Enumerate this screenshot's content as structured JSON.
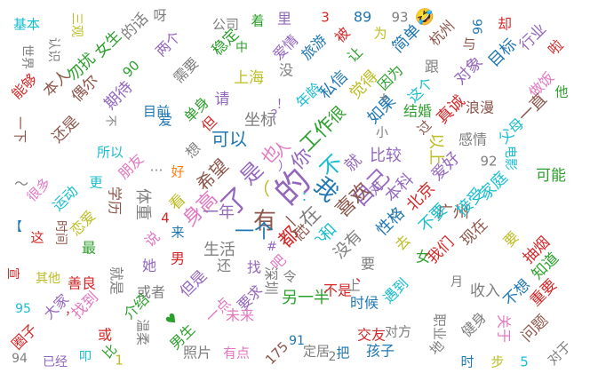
{
  "chart_data": {
    "type": "wordcloud",
    "palette": [
      "#1f77b4",
      "#ff7f0e",
      "#2ca02c",
      "#d62728",
      "#9467bd",
      "#8c564b",
      "#e377c2",
      "#7f7f7f",
      "#bcbd22",
      "#17becf"
    ],
    "words": [
      {
        "text": "的",
        "color": "#9467bd"
      },
      {
        "text": "我",
        "color": "#1f77b4"
      },
      {
        "text": "有",
        "color": "#8c564b"
      },
      {
        "text": "了",
        "color": "#9467bd"
      },
      {
        "text": "是",
        "color": "#9467bd"
      },
      {
        "text": "不",
        "color": "#17becf"
      },
      {
        "text": "你",
        "color": "#9467bd"
      },
      {
        "text": "在",
        "color": "#7f7f7f"
      },
      {
        "text": "自己",
        "color": "#9467bd"
      },
      {
        "text": "一个",
        "color": "#1f77b4"
      },
      {
        "text": "都",
        "color": "#d62728"
      },
      {
        "text": "希望",
        "color": "#8c564b"
      },
      {
        "text": "身高",
        "color": "#e377c2"
      },
      {
        "text": "工作",
        "color": "#2ca02c"
      },
      {
        "text": "喜欢",
        "color": "#8c564b"
      },
      {
        "text": "也",
        "color": "#e377c2"
      },
      {
        "text": "人",
        "color": "#e377c2"
      },
      {
        "text": "和",
        "color": "#17becf"
      },
      {
        "text": "可以",
        "color": "#1f77b4"
      },
      {
        "text": "一年",
        "color": "#9467bd"
      },
      {
        "text": "就",
        "color": "#9467bd"
      },
      {
        "text": "比较",
        "color": "#9467bd"
      },
      {
        "text": "很",
        "color": "#2ca02c"
      },
      {
        "text": "坐标",
        "color": "#7f7f7f"
      },
      {
        "text": "生活",
        "color": "#7f7f7f"
      },
      {
        "text": "一起",
        "color": "#8c564b"
      },
      {
        "text": "没有",
        "color": "#7f7f7f"
      },
      {
        "text": "性格",
        "color": "#1f77b4"
      },
      {
        "text": "要",
        "color": "#7f7f7f"
      },
      {
        "text": "本科",
        "color": "#9467bd"
      },
      {
        "text": "北京",
        "color": "#d62728"
      },
      {
        "text": "广州",
        "color": "#8c564b"
      },
      {
        "text": "不要",
        "color": "#17becf"
      },
      {
        "text": "接受",
        "color": "#17becf"
      },
      {
        "text": "家庭",
        "color": "#17becf"
      },
      {
        "text": "可能",
        "color": "#2ca02c"
      },
      {
        "text": "感情",
        "color": "#7f7f7f"
      },
      {
        "text": "爱好",
        "color": "#9467bd"
      },
      {
        "text": "结婚",
        "color": "#2ca02c"
      },
      {
        "text": "如果",
        "color": "#1f77b4"
      },
      {
        "text": "私信",
        "color": "#1f77b4"
      },
      {
        "text": "觉得",
        "color": "#bcbd22"
      },
      {
        "text": "上海",
        "color": "#bcbd22"
      },
      {
        "text": "没",
        "color": "#7f7f7f"
      },
      {
        "text": "旅游",
        "color": "#1f77b4"
      },
      {
        "text": "爱情",
        "color": "#9467bd"
      },
      {
        "text": "稳定",
        "color": "#2ca02c"
      },
      {
        "text": "公司",
        "color": "#7f7f7f"
      },
      {
        "text": "着",
        "color": "#2ca02c"
      },
      {
        "text": "里",
        "color": "#9467bd"
      },
      {
        "text": "3",
        "color": "#d62728"
      },
      {
        "text": "89",
        "color": "#1f77b4"
      },
      {
        "text": "93",
        "color": "#7f7f7f"
      },
      {
        "text": "🤣",
        "color": "#ff7f0e"
      },
      {
        "text": "杭州",
        "color": "#8c564b"
      },
      {
        "text": "96",
        "color": "#1f77b4"
      },
      {
        "text": "却",
        "color": "#d62728"
      },
      {
        "text": "行业",
        "color": "#9467bd"
      },
      {
        "text": "啦",
        "color": "#d62728"
      },
      {
        "text": "基本",
        "color": "#17becf"
      },
      {
        "text": "三观",
        "color": "#bcbd22"
      },
      {
        "text": "世界",
        "color": "#7f7f7f"
      },
      {
        "text": "认识",
        "color": "#7f7f7f"
      },
      {
        "text": "勿扰",
        "color": "#2ca02c"
      },
      {
        "text": "女生",
        "color": "#2ca02c"
      },
      {
        "text": "的话",
        "color": "#7f7f7f"
      },
      {
        "text": "呀",
        "color": "#7f7f7f"
      },
      {
        "text": "两个",
        "color": "#9467bd"
      },
      {
        "text": "中",
        "color": "#2ca02c"
      },
      {
        "text": "被",
        "color": "#d62728"
      },
      {
        "text": "为",
        "color": "#bcbd22"
      },
      {
        "text": "简单",
        "color": "#1f77b4"
      },
      {
        "text": "跟",
        "color": "#7f7f7f"
      },
      {
        "text": "与",
        "color": "#8c564b"
      },
      {
        "text": "目标",
        "color": "#1f77b4"
      },
      {
        "text": "对象",
        "color": "#9467bd"
      },
      {
        "text": "做饭",
        "color": "#e377c2"
      },
      {
        "text": "他",
        "color": "#2ca02c"
      },
      {
        "text": "能够",
        "color": "#d62728"
      },
      {
        "text": "本人",
        "color": "#8c564b"
      },
      {
        "text": "偶尔",
        "color": "#8c564b"
      },
      {
        "text": "90",
        "color": "#2ca02c"
      },
      {
        "text": "期待",
        "color": "#9467bd"
      },
      {
        "text": "需要",
        "color": "#7f7f7f"
      },
      {
        "text": "请",
        "color": "#9467bd"
      },
      {
        "text": "年龄",
        "color": "#17becf"
      },
      {
        "text": "让",
        "color": "#2ca02c"
      },
      {
        "text": "因为",
        "color": "#2ca02c"
      },
      {
        "text": "这个",
        "color": "#17becf"
      },
      {
        "text": "真诚",
        "color": "#d62728"
      },
      {
        "text": "一直",
        "color": "#8c564b"
      },
      {
        "text": "父母",
        "color": "#17becf"
      },
      {
        "text": "一下",
        "color": "#8c564b"
      },
      {
        "text": "还是",
        "color": "#8c564b"
      },
      {
        "text": "不",
        "color": "#7f7f7f"
      },
      {
        "text": "目前",
        "color": "#1f77b4"
      },
      {
        "text": "单身",
        "color": "#2ca02c"
      },
      {
        "text": "但",
        "color": "#d62728"
      },
      {
        "text": "小",
        "color": "#7f7f7f"
      },
      {
        "text": "过",
        "color": "#8c564b"
      },
      {
        "text": "以上",
        "color": "#bcbd22"
      },
      {
        "text": "92",
        "color": "#7f7f7f"
      },
      {
        "text": "电影",
        "color": "#17becf"
      },
      {
        "text": "浪漫",
        "color": "#8c564b"
      },
      {
        "text": "所以",
        "color": "#17becf"
      },
      {
        "text": "朋友",
        "color": "#e377c2"
      },
      {
        "text": "好",
        "color": "#ff7f0e"
      },
      {
        "text": "爱",
        "color": "#1f77b4"
      },
      {
        "text": "想",
        "color": "#7f7f7f"
      },
      {
        "text": "对",
        "color": "#9467bd"
      },
      {
        "text": "更",
        "color": "#17becf"
      },
      {
        "text": "体重",
        "color": "#7f7f7f"
      },
      {
        "text": "看",
        "color": "#bcbd22"
      },
      {
        "text": "4",
        "color": "#d62728"
      },
      {
        "text": "很多",
        "color": "#e377c2"
      },
      {
        "text": "运动",
        "color": "#17becf"
      },
      {
        "text": "恋爱",
        "color": "#bcbd22"
      },
      {
        "text": "学历",
        "color": "#8c564b"
      },
      {
        "text": "说",
        "color": "#e377c2"
      },
      {
        "text": "来",
        "color": "#1f77b4"
      },
      {
        "text": "这",
        "color": "#d62728"
      },
      {
        "text": "时间",
        "color": "#8c564b"
      },
      {
        "text": "最",
        "color": "#2ca02c"
      },
      {
        "text": "她",
        "color": "#9467bd"
      },
      {
        "text": "男",
        "color": "#d62728"
      },
      {
        "text": "还",
        "color": "#7f7f7f"
      },
      {
        "text": "找",
        "color": "#9467bd"
      },
      {
        "text": "吧",
        "color": "#e377c2"
      },
      {
        "text": "令",
        "color": "#7f7f7f"
      },
      {
        "text": "女",
        "color": "#2ca02c"
      },
      {
        "text": "去",
        "color": "#bcbd22"
      },
      {
        "text": "我们",
        "color": "#d62728"
      },
      {
        "text": "现在",
        "color": "#8c564b"
      },
      {
        "text": "要",
        "color": "#bcbd22"
      },
      {
        "text": "抽烟",
        "color": "#d62728"
      },
      {
        "text": "知道",
        "color": "#2ca02c"
      },
      {
        "text": "宣",
        "color": "#d62728"
      },
      {
        "text": "其他",
        "color": "#bcbd22"
      },
      {
        "text": "善良",
        "color": "#d62728"
      },
      {
        "text": "就是",
        "color": "#7f7f7f"
      },
      {
        "text": "或者",
        "color": "#7f7f7f"
      },
      {
        "text": "但是",
        "color": "#9467bd"
      },
      {
        "text": "深圳",
        "color": "#7f7f7f"
      },
      {
        "text": "另一半",
        "color": "#2ca02c"
      },
      {
        "text": "不是",
        "color": "#d62728"
      },
      {
        "text": "上",
        "color": "#7f7f7f"
      },
      {
        "text": "时候",
        "color": "#1f77b4"
      },
      {
        "text": "遇到",
        "color": "#17becf"
      },
      {
        "text": "月",
        "color": "#7f7f7f"
      },
      {
        "text": "收入",
        "color": "#7f7f7f"
      },
      {
        "text": "不想",
        "color": "#1f77b4"
      },
      {
        "text": "重要",
        "color": "#d62728"
      },
      {
        "text": "95",
        "color": "#17becf"
      },
      {
        "text": "大家",
        "color": "#9467bd"
      },
      {
        "text": "找到",
        "color": "#e377c2"
      },
      {
        "text": "介绍",
        "color": "#2ca02c"
      },
      {
        "text": "要求",
        "color": "#9467bd"
      },
      {
        "text": "未来",
        "color": "#e377c2"
      },
      {
        "text": "一点",
        "color": "#e377c2"
      },
      {
        "text": "91",
        "color": "#1f77b4"
      },
      {
        "text": "交友",
        "color": "#d62728"
      },
      {
        "text": "对方",
        "color": "#7f7f7f"
      },
      {
        "text": "职业",
        "color": "#7f7f7f"
      },
      {
        "text": "健身",
        "color": "#7f7f7f"
      },
      {
        "text": "关于",
        "color": "#e377c2"
      },
      {
        "text": "问题",
        "color": "#8c564b"
      },
      {
        "text": "圈子",
        "color": "#d62728"
      },
      {
        "text": "或",
        "color": "#d62728"
      },
      {
        "text": "温柔",
        "color": "#7f7f7f"
      },
      {
        "text": "比",
        "color": "#2ca02c"
      },
      {
        "text": "男生",
        "color": "#2ca02c"
      },
      {
        "text": "照片",
        "color": "#7f7f7f"
      },
      {
        "text": "有点",
        "color": "#e377c2"
      },
      {
        "text": "175",
        "color": "#8c564b"
      },
      {
        "text": "定居",
        "color": "#7f7f7f"
      },
      {
        "text": "把",
        "color": "#1f77b4"
      },
      {
        "text": "孩子",
        "color": "#1f77b4"
      },
      {
        "text": "地",
        "color": "#7f7f7f"
      },
      {
        "text": "时",
        "color": "#1f77b4"
      },
      {
        "text": "步",
        "color": "#bcbd22"
      },
      {
        "text": "5",
        "color": "#17becf"
      },
      {
        "text": "对于",
        "color": "#7f7f7f"
      },
      {
        "text": "94",
        "color": "#7f7f7f"
      },
      {
        "text": "已经",
        "color": "#9467bd"
      },
      {
        "text": "叩",
        "color": "#17becf"
      },
      {
        "text": "1",
        "color": "#bcbd22"
      },
      {
        "text": "♥",
        "color": "#2ca02c"
      },
      {
        "text": "【",
        "color": "#1f77b4"
      },
      {
        "text": "～",
        "color": "#7f7f7f"
      },
      {
        "text": "？",
        "color": "#9467bd"
      },
      {
        "text": "！",
        "color": "#9467bd"
      },
      {
        "text": "…",
        "color": "#7f7f7f"
      },
      {
        "text": "（",
        "color": "#bcbd22"
      },
      {
        "text": "）",
        "color": "#9467bd"
      },
      {
        "text": "、",
        "color": "#d62728"
      },
      {
        "text": "+",
        "color": "#7f7f7f"
      },
      {
        "text": "#",
        "color": "#9467bd"
      },
      {
        "text": "，",
        "color": "#d62728"
      },
      {
        "text": "～",
        "color": "#17becf"
      },
      {
        "text": "：",
        "color": "#17becf"
      },
      {
        "text": "2",
        "color": "#7f7f7f"
      }
    ]
  }
}
